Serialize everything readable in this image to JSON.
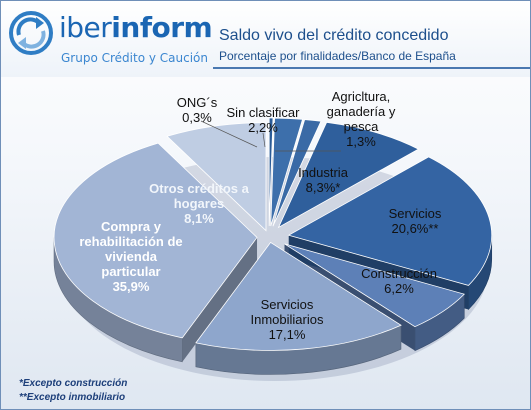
{
  "brand": {
    "name_part1": "iber",
    "name_part2": "inform",
    "tagline": "Grupo Crédito y Caución"
  },
  "chart_data": {
    "type": "pie",
    "title": "Saldo vivo del crédito concedido",
    "subtitle": "Porcentaje por finalidades/Banco de España",
    "slices": [
      {
        "label": [
          "ONG´s",
          "0,3%"
        ],
        "value": 0.3,
        "color": "#2a5b97"
      },
      {
        "label": [
          "Sin clasificar",
          "2,2%"
        ],
        "value": 2.2,
        "color": "#3d6fab"
      },
      {
        "label": [
          "Agricltura,",
          "ganadería y",
          "pesca",
          "1,3%"
        ],
        "value": 1.3,
        "color": "#3a6aa6"
      },
      {
        "label": [
          "Industria",
          "8,3%*"
        ],
        "value": 8.3,
        "color": "#2f5f9c"
      },
      {
        "label": [
          "Servicios",
          "20,6%**"
        ],
        "value": 20.6,
        "color": "#3464a3"
      },
      {
        "label": [
          "Construcción",
          "6,2%"
        ],
        "value": 6.2,
        "color": "#5d80b7"
      },
      {
        "label": [
          "Servicios",
          "Inmobiliarios",
          "17,1%"
        ],
        "value": 17.1,
        "color": "#8ea6cc"
      },
      {
        "label": [
          "Compra y",
          "rehabilitación de",
          "vivienda",
          "particular",
          "35,9%"
        ],
        "value": 35.9,
        "color": "#a2b5d5"
      },
      {
        "label": [
          "Otros créditos a",
          "hogares",
          "8,1%"
        ],
        "value": 8.1,
        "color": "#bfcde3"
      }
    ]
  },
  "footnotes": {
    "note1": "*Excepto construcción",
    "note2": "**Excepto inmobiliario"
  }
}
